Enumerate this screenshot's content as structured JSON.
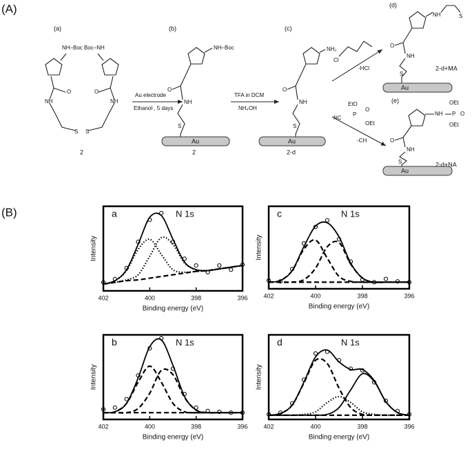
{
  "scheme": {
    "panel_label": "(A)",
    "step_labels": [
      "(a)",
      "(b)",
      "(c)",
      "(d)",
      "(e)"
    ],
    "compound_labels": [
      "2",
      "2",
      "2-d",
      "2-d+MA",
      "2-d+NA"
    ],
    "reagents": [
      "Au electrode",
      "Ethanol , 5 days",
      "TFA in DCM",
      "NH₄OH",
      "-HCl",
      "-CH"
    ],
    "substrate": "Au",
    "atoms": [
      "NH–Boc",
      "Boc–NH",
      "O",
      "NH",
      "S",
      "NH₂",
      "Cl",
      "EtO",
      "NC",
      "P",
      "O",
      "OEt",
      "OEt",
      "OEt"
    ]
  },
  "panel_b_label": "(B)",
  "chart_data": [
    {
      "type": "line",
      "panel": "a",
      "title": "N 1s",
      "xlabel": "Binding energy (eV)",
      "ylabel": "Intensity",
      "xlim": [
        402,
        396
      ],
      "ylim": [
        0,
        100
      ],
      "xticks": [
        402,
        400,
        398,
        396
      ],
      "x": [
        402,
        401.5,
        401,
        400.5,
        400,
        399.5,
        399,
        398.5,
        398,
        397.5,
        397,
        396.5,
        396
      ],
      "series": [
        {
          "style": "circles",
          "color": "#000",
          "values": [
            10,
            14,
            27,
            58,
            84,
            92,
            58,
            38,
            30,
            22,
            30,
            25,
            31
          ]
        },
        {
          "style": "solid",
          "color": "#000",
          "values": [
            8,
            12,
            25,
            55,
            87,
            89,
            61,
            34,
            25,
            24,
            26,
            28,
            30
          ]
        },
        {
          "style": "dotted",
          "color": "#000",
          "values": [
            8,
            12,
            24,
            49,
            61,
            43,
            25,
            22,
            23,
            24,
            26,
            28,
            30
          ]
        },
        {
          "style": "dotted",
          "color": "#000",
          "values": [
            8,
            10,
            13,
            19,
            41,
            63,
            55,
            33,
            25,
            24,
            26,
            28,
            30
          ]
        },
        {
          "style": "dashed",
          "color": "#000",
          "values": [
            8,
            10,
            12,
            13,
            15,
            17,
            19,
            21,
            23,
            24,
            26,
            28,
            30
          ]
        }
      ]
    },
    {
      "type": "line",
      "panel": "b",
      "title": "N 1s",
      "xlabel": "Binding energy (eV)",
      "ylabel": "Intensity",
      "xlim": [
        402,
        396
      ],
      "ylim": [
        0,
        100
      ],
      "xticks": [
        402,
        400,
        398,
        396
      ],
      "x": [
        402,
        401.5,
        401,
        400.5,
        400,
        399.5,
        399,
        398.5,
        398,
        397.5,
        397,
        396.5,
        396
      ],
      "series": [
        {
          "style": "circles",
          "color": "#000",
          "values": [
            12,
            14,
            24,
            52,
            84,
            96,
            60,
            30,
            14,
            10,
            9,
            8,
            8
          ]
        },
        {
          "style": "solid",
          "color": "#000",
          "values": [
            8,
            9,
            19,
            49,
            86,
            94,
            64,
            27,
            11,
            8,
            8,
            8,
            8
          ]
        },
        {
          "style": "dashed",
          "color": "#000",
          "values": [
            8,
            9,
            19,
            44,
            63,
            44,
            19,
            9,
            8,
            8,
            8,
            8,
            8
          ]
        },
        {
          "style": "dashed",
          "color": "#000",
          "values": [
            8,
            8,
            8,
            13,
            31,
            58,
            53,
            26,
            11,
            8,
            8,
            8,
            8
          ]
        },
        {
          "style": "dashed",
          "color": "#000",
          "values": [
            8,
            8,
            8,
            8,
            8,
            8,
            8,
            8,
            8,
            8,
            8,
            8,
            8
          ]
        }
      ]
    },
    {
      "type": "line",
      "panel": "c",
      "title": "N 1s",
      "xlabel": "Binding energy (eV)",
      "ylabel": "Intensity",
      "xlim": [
        402,
        396
      ],
      "ylim": [
        0,
        100
      ],
      "xticks": [
        402,
        400,
        398,
        396
      ],
      "x": [
        402,
        401.5,
        401,
        400.5,
        400,
        399.5,
        399,
        398.5,
        398,
        397.5,
        397,
        396.5,
        396
      ],
      "series": [
        {
          "style": "circles",
          "color": "#000",
          "values": [
            10,
            9,
            24,
            55,
            75,
            83,
            60,
            33,
            11,
            8,
            12,
            9,
            8
          ]
        },
        {
          "style": "solid",
          "color": "#000",
          "values": [
            8,
            10,
            22,
            51,
            76,
            80,
            63,
            31,
            13,
            8,
            8,
            8,
            8
          ]
        },
        {
          "style": "dashed",
          "color": "#000",
          "values": [
            8,
            10,
            22,
            48,
            59,
            37,
            15,
            9,
            8,
            8,
            8,
            8,
            8
          ]
        },
        {
          "style": "dashed",
          "color": "#000",
          "values": [
            8,
            8,
            8,
            11,
            25,
            51,
            56,
            30,
            13,
            8,
            8,
            8,
            8
          ]
        },
        {
          "style": "dashed",
          "color": "#000",
          "values": [
            8,
            8,
            8,
            8,
            8,
            8,
            8,
            8,
            8,
            8,
            8,
            8,
            8
          ]
        }
      ]
    },
    {
      "type": "line",
      "panel": "d",
      "title": "N 1s",
      "xlabel": "Binding energy (eV)",
      "ylabel": "Intensity",
      "xlim": [
        402,
        396
      ],
      "ylim": [
        0,
        100
      ],
      "xticks": [
        402,
        400,
        398,
        396
      ],
      "x": [
        402,
        401.5,
        401,
        400.5,
        400,
        399.5,
        399,
        398.5,
        398,
        397.5,
        397,
        396.5,
        396
      ],
      "series": [
        {
          "style": "circles",
          "color": "#000",
          "values": [
            6,
            8,
            19,
            47,
            78,
            80,
            70,
            60,
            58,
            44,
            22,
            10,
            6
          ]
        },
        {
          "style": "solid",
          "color": "#000",
          "values": [
            5,
            7,
            17,
            44,
            74,
            82,
            68,
            59,
            59,
            46,
            21,
            8,
            5
          ]
        },
        {
          "style": "dashed",
          "color": "#000",
          "values": [
            5,
            7,
            17,
            43,
            70,
            66,
            37,
            14,
            6,
            5,
            5,
            5,
            5
          ]
        },
        {
          "style": "dotted",
          "color": "#000",
          "values": [
            5,
            5,
            5,
            6,
            9,
            20,
            27,
            20,
            9,
            6,
            5,
            5,
            5
          ]
        },
        {
          "style": "solid",
          "color": "#000",
          "values": [
            5,
            5,
            5,
            5,
            5,
            6,
            14,
            35,
            54,
            45,
            21,
            8,
            5
          ]
        },
        {
          "style": "dashed",
          "color": "#000",
          "values": [
            5,
            5,
            5,
            5,
            5,
            5,
            5,
            5,
            5,
            5,
            5,
            5,
            5
          ]
        }
      ]
    }
  ]
}
